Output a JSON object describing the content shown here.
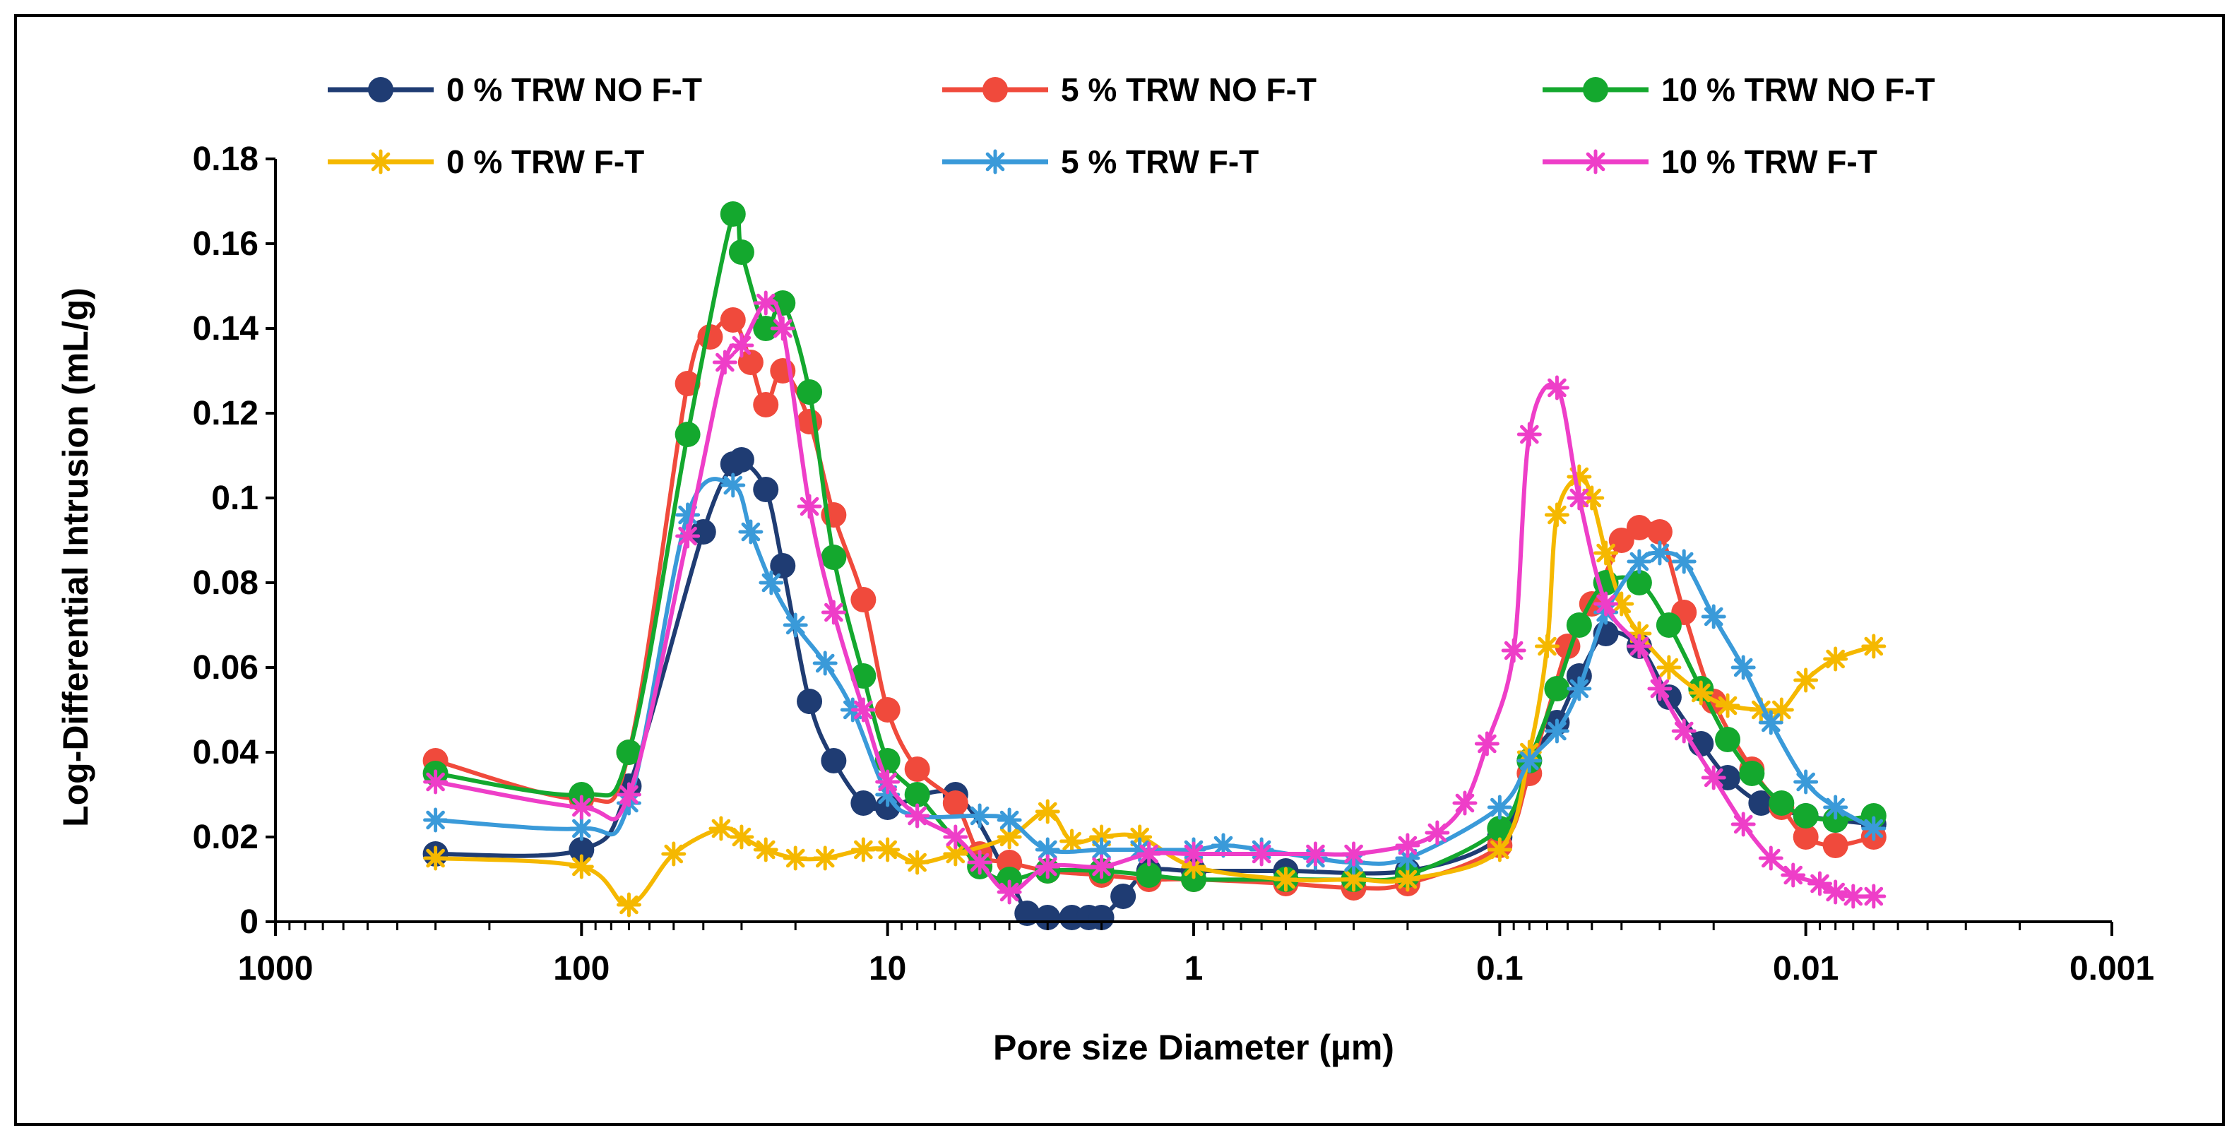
{
  "chart_data": {
    "type": "line",
    "xlabel": "Pore size Diameter (µm)",
    "ylabel": "Log-Differential Intrusion (mL/g)",
    "x_scale": "log",
    "x_reversed": true,
    "xlim": [
      1000,
      0.001
    ],
    "ylim": [
      0,
      0.18
    ],
    "x_ticks": [
      "1000",
      "100",
      "10",
      "1",
      "0.1",
      "0.01",
      "0.001"
    ],
    "y_ticks": [
      "0",
      "0.02",
      "0.04",
      "0.06",
      "0.08",
      "0.1",
      "0.12",
      "0.14",
      "0.16",
      "0.18"
    ],
    "legend_position": "top",
    "series": [
      {
        "name": "0 % TRW NO F-T",
        "color": "#1f3c73",
        "marker": "circle",
        "points": [
          [
            300,
            0.016
          ],
          [
            100,
            0.017
          ],
          [
            70,
            0.032
          ],
          [
            40,
            0.092
          ],
          [
            32,
            0.108
          ],
          [
            30,
            0.109
          ],
          [
            25,
            0.102
          ],
          [
            22,
            0.084
          ],
          [
            18,
            0.052
          ],
          [
            15,
            0.038
          ],
          [
            12,
            0.028
          ],
          [
            10,
            0.027
          ],
          [
            6,
            0.03
          ],
          [
            4,
            0.01
          ],
          [
            3.5,
            0.002
          ],
          [
            3,
            0.001
          ],
          [
            2.5,
            0.001
          ],
          [
            2.2,
            0.001
          ],
          [
            2,
            0.001
          ],
          [
            1.7,
            0.006
          ],
          [
            1.4,
            0.012
          ],
          [
            1,
            0.012
          ],
          [
            0.5,
            0.012
          ],
          [
            0.2,
            0.012
          ],
          [
            0.1,
            0.02
          ],
          [
            0.08,
            0.038
          ],
          [
            0.065,
            0.047
          ],
          [
            0.055,
            0.058
          ],
          [
            0.045,
            0.068
          ],
          [
            0.035,
            0.065
          ],
          [
            0.028,
            0.053
          ],
          [
            0.022,
            0.042
          ],
          [
            0.018,
            0.034
          ],
          [
            0.014,
            0.028
          ],
          [
            0.01,
            0.025
          ],
          [
            0.008,
            0.024
          ],
          [
            0.006,
            0.023
          ]
        ]
      },
      {
        "name": "5 % TRW NO F-T",
        "color": "#f04a3c",
        "marker": "circle",
        "points": [
          [
            300,
            0.038
          ],
          [
            100,
            0.029
          ],
          [
            70,
            0.04
          ],
          [
            45,
            0.127
          ],
          [
            38,
            0.138
          ],
          [
            32,
            0.142
          ],
          [
            28,
            0.132
          ],
          [
            25,
            0.122
          ],
          [
            22,
            0.13
          ],
          [
            18,
            0.118
          ],
          [
            15,
            0.096
          ],
          [
            12,
            0.076
          ],
          [
            10,
            0.05
          ],
          [
            8,
            0.036
          ],
          [
            6,
            0.028
          ],
          [
            5,
            0.016
          ],
          [
            4,
            0.014
          ],
          [
            3,
            0.012
          ],
          [
            2,
            0.011
          ],
          [
            1.4,
            0.01
          ],
          [
            1,
            0.01
          ],
          [
            0.5,
            0.009
          ],
          [
            0.3,
            0.008
          ],
          [
            0.2,
            0.009
          ],
          [
            0.1,
            0.018
          ],
          [
            0.08,
            0.035
          ],
          [
            0.06,
            0.065
          ],
          [
            0.05,
            0.075
          ],
          [
            0.04,
            0.09
          ],
          [
            0.035,
            0.093
          ],
          [
            0.03,
            0.092
          ],
          [
            0.025,
            0.073
          ],
          [
            0.02,
            0.052
          ],
          [
            0.015,
            0.036
          ],
          [
            0.012,
            0.027
          ],
          [
            0.01,
            0.02
          ],
          [
            0.008,
            0.018
          ],
          [
            0.006,
            0.02
          ]
        ]
      },
      {
        "name": "10 % TRW NO F-T",
        "color": "#14a82e",
        "marker": "circle",
        "points": [
          [
            300,
            0.035
          ],
          [
            100,
            0.03
          ],
          [
            70,
            0.04
          ],
          [
            45,
            0.115
          ],
          [
            32,
            0.167
          ],
          [
            30,
            0.158
          ],
          [
            25,
            0.14
          ],
          [
            22,
            0.146
          ],
          [
            18,
            0.125
          ],
          [
            15,
            0.086
          ],
          [
            12,
            0.058
          ],
          [
            10,
            0.038
          ],
          [
            8,
            0.03
          ],
          [
            5,
            0.013
          ],
          [
            4,
            0.01
          ],
          [
            3,
            0.012
          ],
          [
            2,
            0.012
          ],
          [
            1.4,
            0.011
          ],
          [
            1,
            0.01
          ],
          [
            0.5,
            0.01
          ],
          [
            0.3,
            0.01
          ],
          [
            0.2,
            0.011
          ],
          [
            0.1,
            0.022
          ],
          [
            0.08,
            0.038
          ],
          [
            0.065,
            0.055
          ],
          [
            0.055,
            0.07
          ],
          [
            0.045,
            0.08
          ],
          [
            0.035,
            0.08
          ],
          [
            0.028,
            0.07
          ],
          [
            0.022,
            0.055
          ],
          [
            0.018,
            0.043
          ],
          [
            0.015,
            0.035
          ],
          [
            0.012,
            0.028
          ],
          [
            0.01,
            0.025
          ],
          [
            0.008,
            0.024
          ],
          [
            0.006,
            0.025
          ]
        ]
      },
      {
        "name": "0 % TRW F-T",
        "color": "#f5b800",
        "marker": "star",
        "points": [
          [
            300,
            0.015
          ],
          [
            100,
            0.013
          ],
          [
            70,
            0.004
          ],
          [
            50,
            0.016
          ],
          [
            35,
            0.022
          ],
          [
            30,
            0.02
          ],
          [
            25,
            0.017
          ],
          [
            20,
            0.015
          ],
          [
            16,
            0.015
          ],
          [
            12,
            0.017
          ],
          [
            10,
            0.017
          ],
          [
            8,
            0.014
          ],
          [
            6,
            0.016
          ],
          [
            4,
            0.02
          ],
          [
            3,
            0.026
          ],
          [
            2.5,
            0.019
          ],
          [
            2,
            0.02
          ],
          [
            1.5,
            0.02
          ],
          [
            1,
            0.013
          ],
          [
            0.5,
            0.01
          ],
          [
            0.3,
            0.01
          ],
          [
            0.2,
            0.01
          ],
          [
            0.1,
            0.017
          ],
          [
            0.08,
            0.04
          ],
          [
            0.07,
            0.065
          ],
          [
            0.065,
            0.096
          ],
          [
            0.055,
            0.105
          ],
          [
            0.05,
            0.1
          ],
          [
            0.045,
            0.087
          ],
          [
            0.04,
            0.075
          ],
          [
            0.035,
            0.068
          ],
          [
            0.028,
            0.06
          ],
          [
            0.022,
            0.054
          ],
          [
            0.018,
            0.051
          ],
          [
            0.014,
            0.05
          ],
          [
            0.012,
            0.05
          ],
          [
            0.01,
            0.057
          ],
          [
            0.008,
            0.062
          ],
          [
            0.006,
            0.065
          ]
        ]
      },
      {
        "name": "5 % TRW F-T",
        "color": "#3a9ad9",
        "marker": "star",
        "points": [
          [
            300,
            0.024
          ],
          [
            100,
            0.022
          ],
          [
            70,
            0.028
          ],
          [
            45,
            0.096
          ],
          [
            32,
            0.103
          ],
          [
            28,
            0.092
          ],
          [
            24,
            0.08
          ],
          [
            20,
            0.07
          ],
          [
            16,
            0.061
          ],
          [
            13,
            0.05
          ],
          [
            10,
            0.03
          ],
          [
            8,
            0.025
          ],
          [
            5,
            0.025
          ],
          [
            4,
            0.024
          ],
          [
            3,
            0.017
          ],
          [
            2,
            0.017
          ],
          [
            1.5,
            0.017
          ],
          [
            1,
            0.017
          ],
          [
            0.8,
            0.018
          ],
          [
            0.6,
            0.017
          ],
          [
            0.4,
            0.015
          ],
          [
            0.3,
            0.014
          ],
          [
            0.2,
            0.015
          ],
          [
            0.1,
            0.027
          ],
          [
            0.08,
            0.038
          ],
          [
            0.065,
            0.045
          ],
          [
            0.055,
            0.055
          ],
          [
            0.045,
            0.073
          ],
          [
            0.035,
            0.085
          ],
          [
            0.03,
            0.087
          ],
          [
            0.025,
            0.085
          ],
          [
            0.02,
            0.072
          ],
          [
            0.016,
            0.06
          ],
          [
            0.013,
            0.047
          ],
          [
            0.01,
            0.033
          ],
          [
            0.008,
            0.027
          ],
          [
            0.006,
            0.022
          ]
        ]
      },
      {
        "name": "10 % TRW F-T",
        "color": "#ee3ec8",
        "marker": "star",
        "points": [
          [
            300,
            0.033
          ],
          [
            100,
            0.027
          ],
          [
            70,
            0.03
          ],
          [
            45,
            0.091
          ],
          [
            34,
            0.132
          ],
          [
            30,
            0.136
          ],
          [
            25,
            0.146
          ],
          [
            22,
            0.14
          ],
          [
            18,
            0.098
          ],
          [
            15,
            0.073
          ],
          [
            12,
            0.05
          ],
          [
            10,
            0.033
          ],
          [
            8,
            0.025
          ],
          [
            6,
            0.02
          ],
          [
            5,
            0.014
          ],
          [
            4,
            0.007
          ],
          [
            3,
            0.013
          ],
          [
            2,
            0.013
          ],
          [
            1.4,
            0.016
          ],
          [
            1,
            0.016
          ],
          [
            0.6,
            0.016
          ],
          [
            0.4,
            0.016
          ],
          [
            0.3,
            0.016
          ],
          [
            0.2,
            0.018
          ],
          [
            0.16,
            0.021
          ],
          [
            0.13,
            0.028
          ],
          [
            0.11,
            0.042
          ],
          [
            0.09,
            0.064
          ],
          [
            0.08,
            0.115
          ],
          [
            0.065,
            0.126
          ],
          [
            0.055,
            0.1
          ],
          [
            0.045,
            0.075
          ],
          [
            0.035,
            0.065
          ],
          [
            0.03,
            0.055
          ],
          [
            0.025,
            0.045
          ],
          [
            0.02,
            0.034
          ],
          [
            0.016,
            0.023
          ],
          [
            0.013,
            0.015
          ],
          [
            0.011,
            0.011
          ],
          [
            0.009,
            0.009
          ],
          [
            0.008,
            0.007
          ],
          [
            0.007,
            0.006
          ],
          [
            0.006,
            0.006
          ]
        ]
      }
    ]
  }
}
